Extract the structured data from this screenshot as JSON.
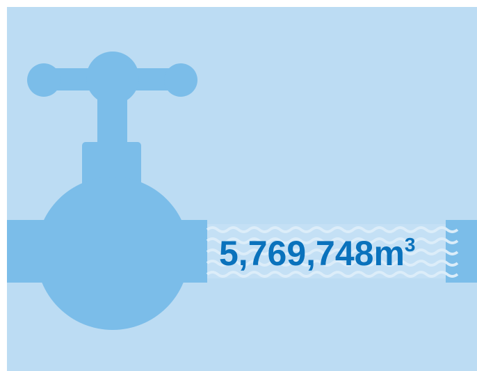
{
  "volume": {
    "value": "5,769,748",
    "unit": "m",
    "superscript": "3"
  }
}
